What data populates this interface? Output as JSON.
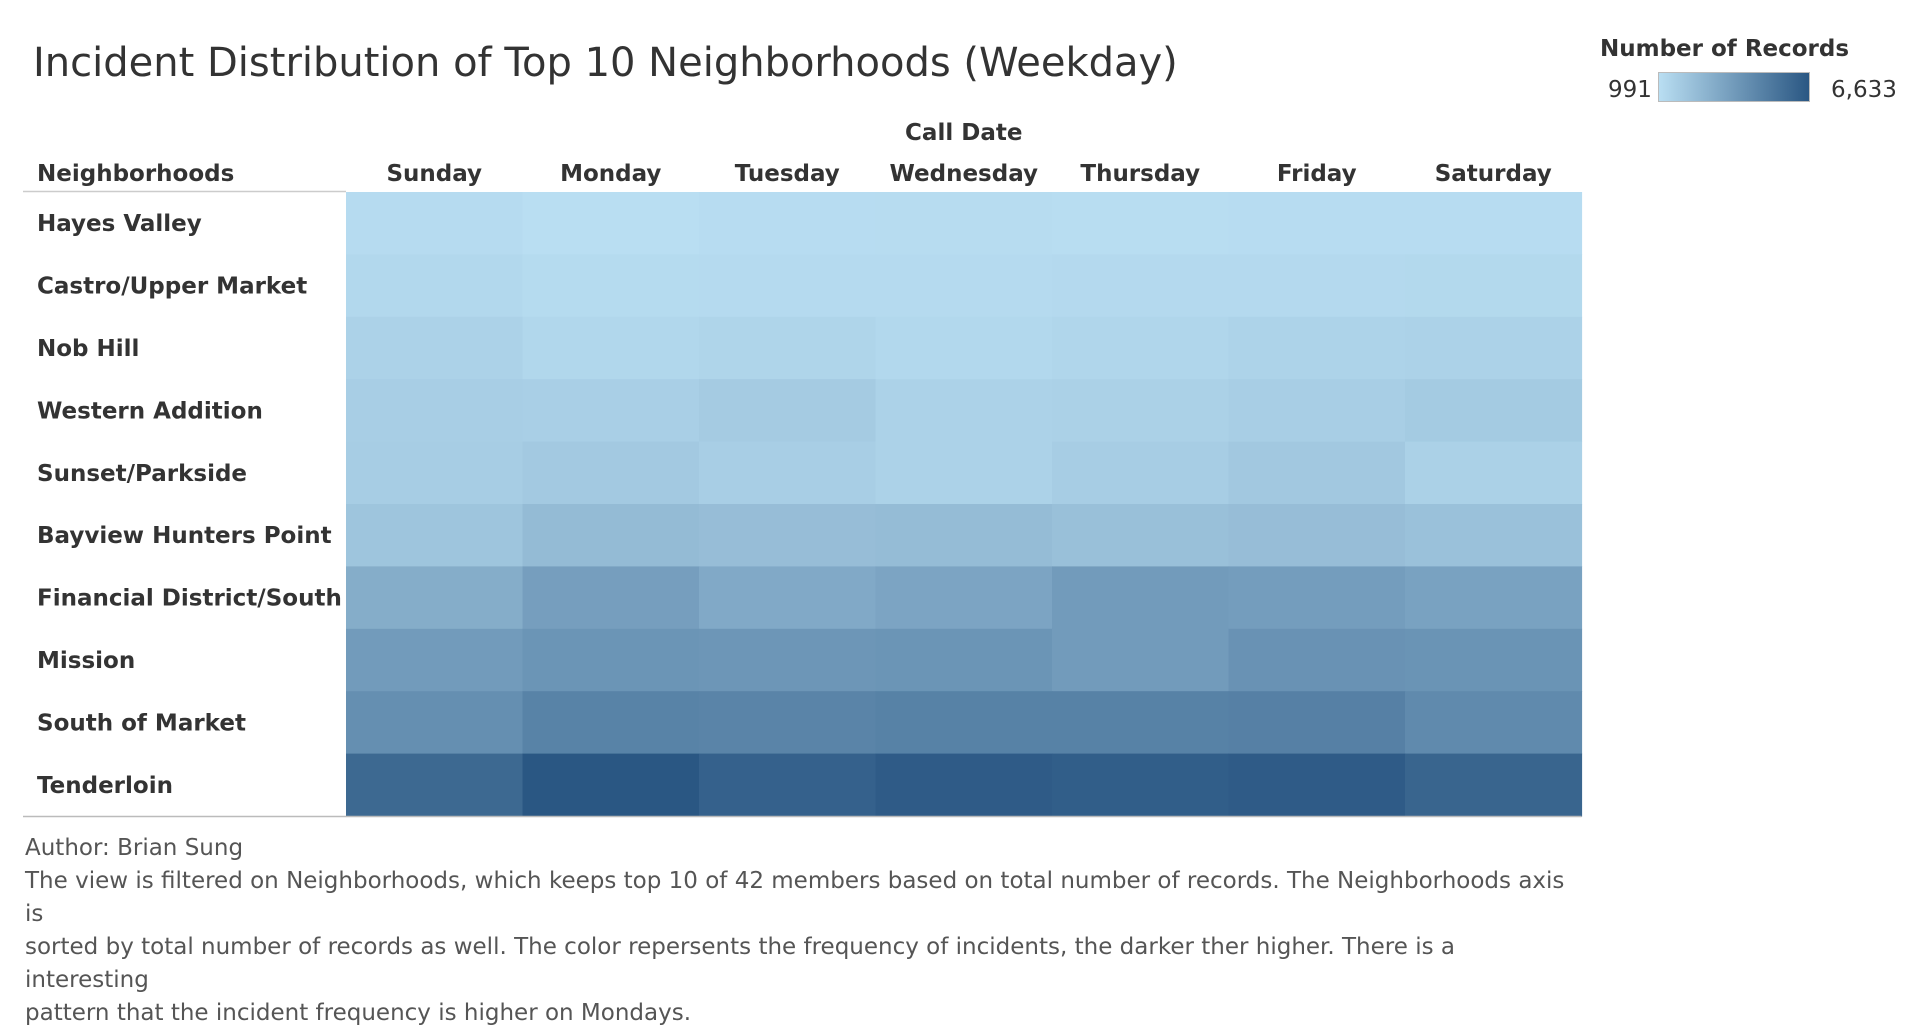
{
  "chart_data": {
    "type": "heatmap",
    "title": "Incident Distribution of Top 10 Neighborhoods (Weekday)",
    "row_header": "Neighborhoods",
    "column_header": "Call Date",
    "columns": [
      "Sunday",
      "Monday",
      "Tuesday",
      "Wednesday",
      "Thursday",
      "Friday",
      "Saturday"
    ],
    "rows": [
      "Hayes Valley",
      "Castro/Upper Market",
      "Nob Hill",
      "Western Addition",
      "Sunset/Parkside",
      "Bayview Hunters Point",
      "Financial District/South B..",
      "Mission",
      "South of Market",
      "Tenderloin"
    ],
    "values": [
      [
        1100,
        1000,
        1060,
        1080,
        1040,
        1060,
        1060
      ],
      [
        1250,
        1130,
        1150,
        1140,
        1200,
        1190,
        1220
      ],
      [
        1500,
        1300,
        1380,
        1250,
        1330,
        1450,
        1500
      ],
      [
        1650,
        1620,
        1780,
        1500,
        1550,
        1650,
        1800
      ],
      [
        1700,
        1850,
        1650,
        1500,
        1700,
        1900,
        1550
      ],
      [
        2050,
        2450,
        2350,
        2400,
        2250,
        2350,
        2200
      ],
      [
        3050,
        3650,
        3200,
        3400,
        3800,
        3700,
        3500
      ],
      [
        3800,
        4050,
        4000,
        4050,
        3800,
        4150,
        4100
      ],
      [
        4300,
        4800,
        4750,
        4850,
        4850,
        4900,
        4500
      ],
      [
        5900,
        6633,
        6200,
        6450,
        6350,
        6450,
        6050
      ]
    ],
    "color_scale": {
      "title": "Number of Records",
      "min": 991,
      "max": 6633,
      "min_label": "991",
      "max_label": "6,633",
      "min_color": "#b9def2",
      "max_color": "#2a5783"
    }
  },
  "footer": {
    "author": "Author: Brian Sung",
    "description": [
      "The view is filtered on Neighborhoods, which keeps top 10 of 42 members based on total number of records. The Neighborhoods axis is",
      "sorted by total number of records as well. The color repersents the frequency of incidents, the darker ther higher. There is a interesting",
      "pattern that the incident frequency is higher on Mondays."
    ]
  }
}
